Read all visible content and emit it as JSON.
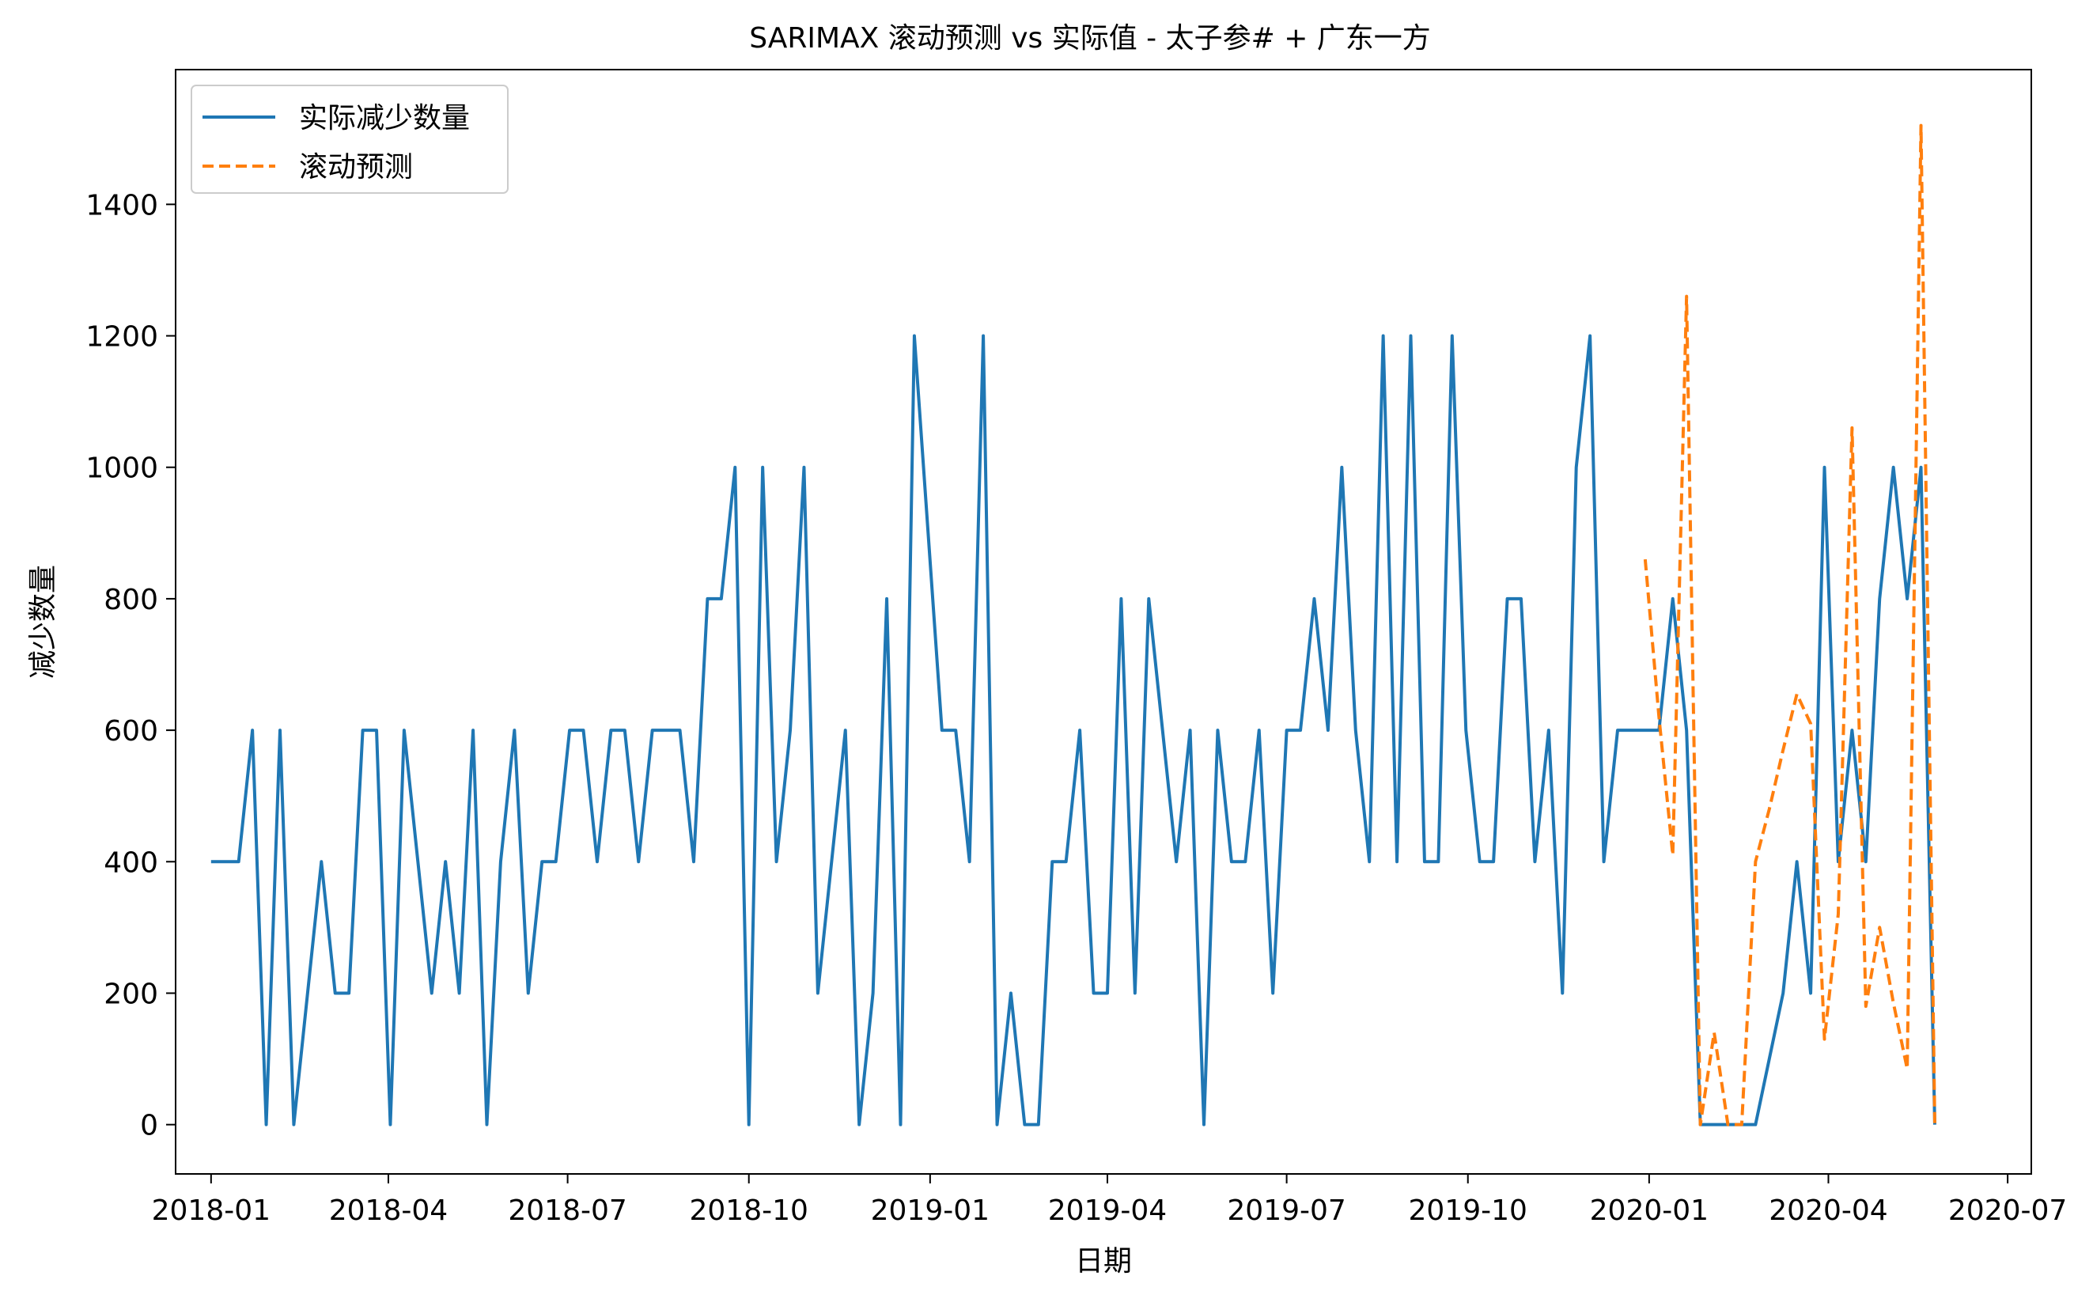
{
  "chart_data": {
    "type": "line",
    "title": "SARIMAX 滚动预测 vs 实际值 - 太子参# + 广东一方",
    "xlabel": "日期",
    "ylabel": "减少数量",
    "xlim": [
      "2017-12-14",
      "2020-07-13"
    ],
    "ylim": [
      -75,
      1605
    ],
    "x_ticks": [
      "2018-01",
      "2018-04",
      "2018-07",
      "2018-10",
      "2019-01",
      "2019-04",
      "2019-07",
      "2019-10",
      "2020-01",
      "2020-04",
      "2020-07"
    ],
    "y_ticks": [
      0,
      200,
      400,
      600,
      800,
      1000,
      1200,
      1400
    ],
    "legend_position": "top-left",
    "grid": false,
    "series": [
      {
        "name": "实际减少数量",
        "color": "#1f77b4",
        "style": "solid",
        "x": [
          "2018-01-01",
          "2018-01-08",
          "2018-01-15",
          "2018-01-22",
          "2018-01-29",
          "2018-02-05",
          "2018-02-12",
          "2018-02-19",
          "2018-02-26",
          "2018-03-05",
          "2018-03-12",
          "2018-03-19",
          "2018-03-26",
          "2018-04-02",
          "2018-04-09",
          "2018-04-16",
          "2018-04-23",
          "2018-04-30",
          "2018-05-07",
          "2018-05-14",
          "2018-05-21",
          "2018-05-28",
          "2018-06-04",
          "2018-06-11",
          "2018-06-18",
          "2018-06-25",
          "2018-07-02",
          "2018-07-09",
          "2018-07-16",
          "2018-07-23",
          "2018-07-30",
          "2018-08-06",
          "2018-08-13",
          "2018-08-20",
          "2018-08-27",
          "2018-09-03",
          "2018-09-10",
          "2018-09-17",
          "2018-09-24",
          "2018-10-01",
          "2018-10-08",
          "2018-10-15",
          "2018-10-22",
          "2018-10-29",
          "2018-11-05",
          "2018-11-12",
          "2018-11-19",
          "2018-11-26",
          "2018-12-03",
          "2018-12-10",
          "2018-12-17",
          "2018-12-24",
          "2018-12-31",
          "2019-01-07",
          "2019-01-14",
          "2019-01-21",
          "2019-01-28",
          "2019-02-04",
          "2019-02-11",
          "2019-02-18",
          "2019-02-25",
          "2019-03-04",
          "2019-03-11",
          "2019-03-18",
          "2019-03-25",
          "2019-04-01",
          "2019-04-08",
          "2019-04-15",
          "2019-04-22",
          "2019-04-29",
          "2019-05-06",
          "2019-05-13",
          "2019-05-20",
          "2019-05-27",
          "2019-06-03",
          "2019-06-10",
          "2019-06-17",
          "2019-06-24",
          "2019-07-01",
          "2019-07-08",
          "2019-07-15",
          "2019-07-22",
          "2019-07-29",
          "2019-08-05",
          "2019-08-12",
          "2019-08-19",
          "2019-08-26",
          "2019-09-02",
          "2019-09-09",
          "2019-09-16",
          "2019-09-23",
          "2019-09-30",
          "2019-10-07",
          "2019-10-14",
          "2019-10-21",
          "2019-10-28",
          "2019-11-04",
          "2019-11-11",
          "2019-11-18",
          "2019-11-25",
          "2019-12-02",
          "2019-12-09",
          "2019-12-16",
          "2019-12-23",
          "2019-12-30",
          "2020-01-06",
          "2020-01-13",
          "2020-01-20",
          "2020-01-27",
          "2020-02-03",
          "2020-02-10",
          "2020-02-17",
          "2020-02-24",
          "2020-03-09",
          "2020-03-16",
          "2020-03-23",
          "2020-03-30",
          "2020-04-06",
          "2020-04-13",
          "2020-04-20",
          "2020-04-27",
          "2020-05-04",
          "2020-05-11",
          "2020-05-18",
          "2020-05-25"
        ],
        "y": [
          400,
          400,
          400,
          600,
          0,
          600,
          0,
          200,
          400,
          200,
          200,
          600,
          600,
          0,
          600,
          400,
          200,
          400,
          200,
          600,
          0,
          400,
          600,
          200,
          400,
          400,
          600,
          600,
          400,
          600,
          600,
          400,
          600,
          600,
          600,
          400,
          800,
          800,
          1000,
          0,
          1000,
          400,
          600,
          1000,
          200,
          400,
          600,
          0,
          200,
          800,
          0,
          1200,
          900,
          600,
          600,
          400,
          1200,
          0,
          200,
          0,
          0,
          400,
          400,
          600,
          200,
          200,
          800,
          200,
          800,
          600,
          400,
          600,
          0,
          600,
          400,
          400,
          600,
          200,
          600,
          600,
          800,
          600,
          1000,
          600,
          400,
          1200,
          400,
          1200,
          400,
          400,
          1200,
          600,
          400,
          400,
          800,
          800,
          400,
          600,
          200,
          1000,
          1200,
          400,
          600,
          600,
          600,
          600,
          800,
          600,
          0,
          0,
          0,
          0,
          0,
          200,
          400,
          200,
          1000,
          400,
          600,
          400,
          800,
          1000,
          800,
          1000,
          0
        ]
      },
      {
        "name": "滚动预测",
        "color": "#ff7f0e",
        "style": "dashed",
        "x": [
          "2019-12-30",
          "2020-01-06",
          "2020-01-13",
          "2020-01-20",
          "2020-01-27",
          "2020-02-03",
          "2020-02-10",
          "2020-02-17",
          "2020-02-24",
          "2020-03-02",
          "2020-03-09",
          "2020-03-16",
          "2020-03-23",
          "2020-03-30",
          "2020-04-06",
          "2020-04-13",
          "2020-04-20",
          "2020-04-27",
          "2020-05-04",
          "2020-05-11",
          "2020-05-18",
          "2020-05-25"
        ],
        "y": [
          860,
          620,
          410,
          1260,
          0,
          140,
          0,
          0,
          400,
          480,
          570,
          655,
          610,
          130,
          320,
          1060,
          180,
          300,
          185,
          85,
          1520,
          0
        ]
      }
    ]
  }
}
